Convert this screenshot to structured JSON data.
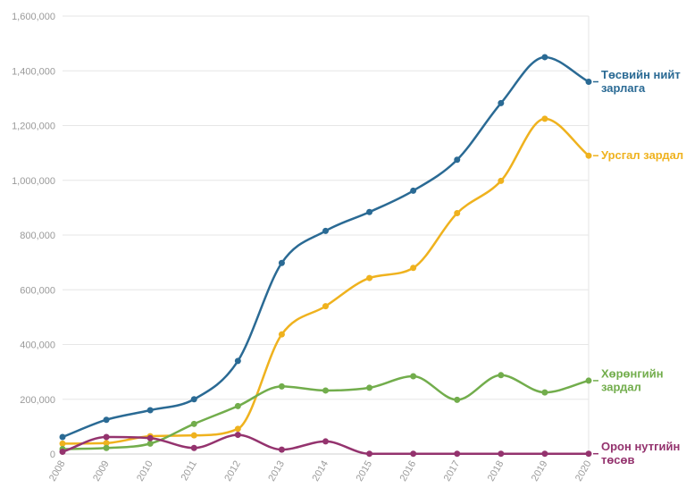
{
  "chart_data": {
    "type": "line",
    "title": "",
    "xlabel": "",
    "ylabel": "",
    "x": [
      "2008",
      "2009",
      "2010",
      "2011",
      "2012",
      "2013",
      "2014",
      "2015",
      "2016",
      "2017",
      "2018",
      "2019",
      "2020"
    ],
    "ylim": [
      0,
      1600000
    ],
    "yticks": [
      0,
      200000,
      400000,
      600000,
      800000,
      1000000,
      1200000,
      1400000,
      1600000
    ],
    "ytick_labels": [
      "0",
      "200,000",
      "400,000",
      "600,000",
      "800,000",
      "1,000,000",
      "1,200,000",
      "1,400,000",
      "1,600,000"
    ],
    "grid": "horizontal",
    "legend": "end-of-line labels",
    "series": [
      {
        "name": "Төсвийн нийт зарлага",
        "label_lines": [
          "Төсвийн нийт",
          "зарлага"
        ],
        "color": "#2a6a94",
        "values": [
          62000,
          125000,
          160000,
          200000,
          340000,
          698000,
          815000,
          884000,
          962000,
          1075000,
          1282000,
          1450000,
          1360000
        ]
      },
      {
        "name": "Урсгал зардал",
        "label_lines": [
          "Урсгал зардал"
        ],
        "color": "#efb21e",
        "values": [
          38000,
          40000,
          65000,
          68000,
          92000,
          437000,
          540000,
          643000,
          680000,
          880000,
          998000,
          1225000,
          1090000
        ]
      },
      {
        "name": "Хөрөнгийн зардал",
        "label_lines": [
          "Хөрөнгийн",
          "зардал"
        ],
        "color": "#72ad4c",
        "values": [
          18000,
          22000,
          38000,
          110000,
          175000,
          247000,
          232000,
          242000,
          284000,
          198000,
          288000,
          225000,
          268000
        ]
      },
      {
        "name": "Орон нутгийн төсөв",
        "label_lines": [
          "Орон нутгийн",
          "төсөв"
        ],
        "color": "#94336e",
        "values": [
          8000,
          62000,
          58000,
          22000,
          70000,
          16000,
          46000,
          1000,
          1000,
          1000,
          1000,
          1000,
          1000
        ]
      }
    ]
  }
}
